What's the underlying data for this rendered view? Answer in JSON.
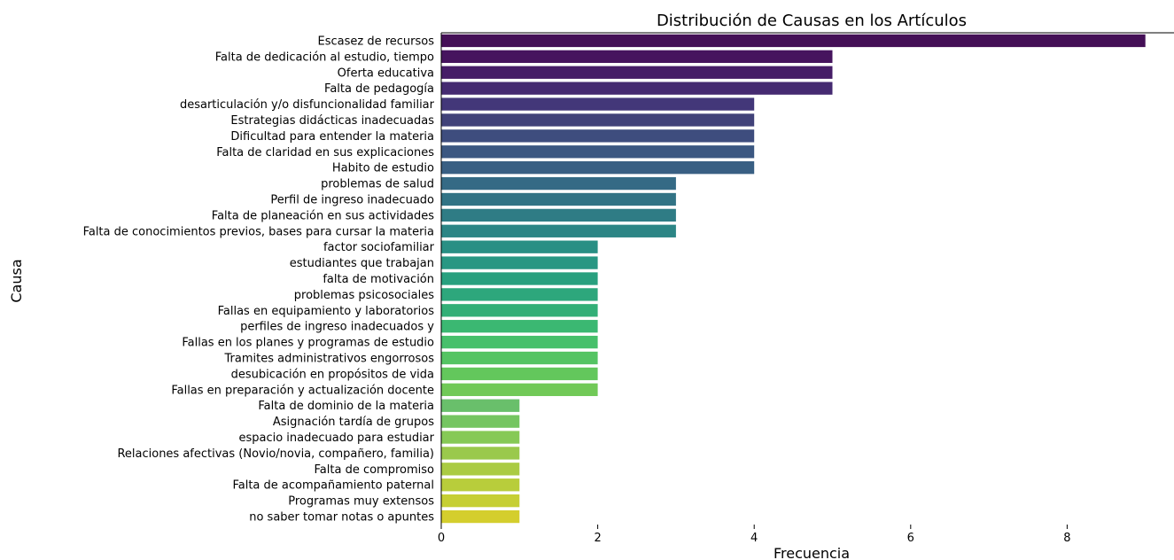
{
  "chart_data": {
    "type": "bar",
    "orientation": "horizontal",
    "title": "Distribución de Causas en los Artículos",
    "xlabel": "Frecuencia",
    "ylabel": "Causa",
    "xlim": [
      0,
      9.45
    ],
    "xticks": [
      0,
      2,
      4,
      6,
      8
    ],
    "grid": false,
    "palette": "viridis",
    "categories": [
      "Escasez de recursos",
      "Falta de dedicación al estudio, tiempo",
      "Oferta educativa",
      "Falta de pedagogía",
      "desarticulación y/o disfuncionalidad familiar",
      "Estrategias didácticas inadecuadas",
      "Dificultad para entender la materia",
      "Falta de claridad en sus explicaciones",
      "Habito de estudio",
      "problemas de salud",
      "Perfil de ingreso inadecuado",
      "Falta de planeación en sus actividades",
      "Falta de conocimientos previos, bases para cursar la materia",
      "factor sociofamiliar",
      "estudiantes que trabajan",
      "falta de motivación",
      "problemas psicosociales",
      "Fallas en equipamiento y laboratorios",
      "perfiles de ingreso inadecuados y",
      "Fallas en los planes y programas de estudio",
      "Tramites administrativos engorrosos",
      "desubicación en propósitos de vida",
      "Fallas en preparación y actualización docente",
      "Falta de dominio de la materia",
      "Asignación tardía de grupos",
      "espacio inadecuado para estudiar",
      "Relaciones afectivas (Novio/novia, compañero, familia)",
      "Falta de compromiso",
      "Falta de acompañamiento paternal",
      "Programas muy extensos",
      "no saber tomar notas o apuntes"
    ],
    "values": [
      9,
      5,
      5,
      5,
      4,
      4,
      4,
      4,
      4,
      3,
      3,
      3,
      3,
      2,
      2,
      2,
      2,
      2,
      2,
      2,
      2,
      2,
      2,
      1,
      1,
      1,
      1,
      1,
      1,
      1,
      1
    ],
    "colors": [
      "#440f56",
      "#46145e",
      "#461d67",
      "#452a71",
      "#433779",
      "#414279",
      "#3e4d7e",
      "#3b5781",
      "#395f83",
      "#356a85",
      "#327385",
      "#2f7c85",
      "#2c8585",
      "#298f84",
      "#289783",
      "#29a07f",
      "#2da77c",
      "#32af77",
      "#3bb872",
      "#47c06b",
      "#55c463",
      "#63c75c",
      "#71c957",
      "#69bf6b",
      "#75c561",
      "#86c956",
      "#9ac94c",
      "#aacb43",
      "#b8cd3b",
      "#c6cf33",
      "#d4ce2d"
    ]
  }
}
